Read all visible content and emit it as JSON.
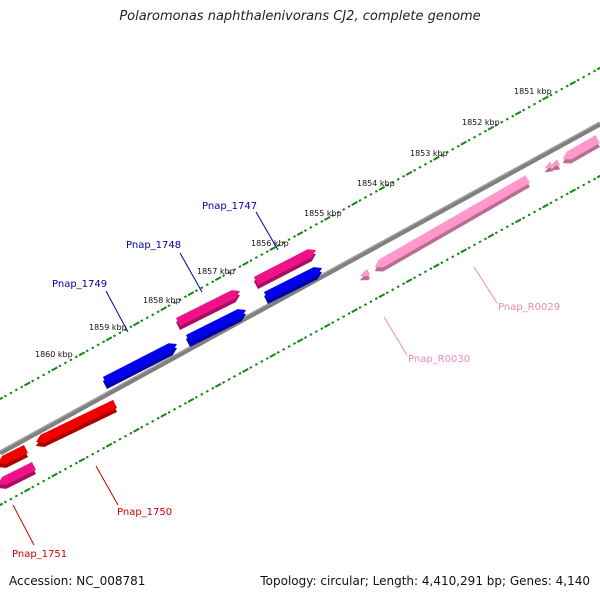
{
  "title": "Polaromonas naphthalenivorans CJ2, complete genome",
  "footer": {
    "accession": "Accession: NC_008781",
    "summary": "Topology: circular; Length: 4,410,291 bp; Genes: 4,140"
  },
  "colors": {
    "backbone": "#808080",
    "ticks": "#118811",
    "label_blue": "#0000aa",
    "label_red": "#cc0000",
    "label_pink": "#ee88bb",
    "gene_red": "#ee0000",
    "gene_blue": "#0000ee",
    "gene_magenta": "#ee1188",
    "gene_pink": "#ff99cc"
  },
  "kbp_labels": [
    "1851 kbp",
    "1852 kbp",
    "1853 kbp",
    "1854 kbp",
    "1855 kbp",
    "1856 kbp",
    "1857 kbp",
    "1858 kbp",
    "1859 kbp",
    "1860 kbp"
  ],
  "gene_labels": [
    "Pnap_1747",
    "Pnap_1748",
    "Pnap_1749",
    "Pnap_1750",
    "Pnap_1751",
    "Pnap_R0029",
    "Pnap_R0030"
  ]
}
